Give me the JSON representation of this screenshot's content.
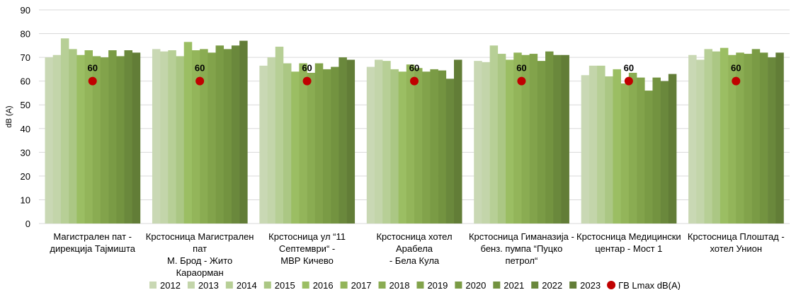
{
  "chart_data": {
    "type": "bar",
    "title": "",
    "xlabel": "",
    "ylabel": "dB (A)",
    "ylim": [
      0,
      90
    ],
    "yticks": [
      0,
      10,
      20,
      30,
      40,
      50,
      60,
      70,
      80,
      90
    ],
    "grid": true,
    "legend_position": "bottom",
    "categories": [
      [
        "Магистрален пат -",
        "дирекција Тајмишта"
      ],
      [
        "Крстосница Магистрален",
        "пат",
        "М. Брод - Жито",
        "Караорман"
      ],
      [
        "Крстосница ул “11",
        "Септември“ -",
        "МВР Кичево"
      ],
      [
        "Крстосница хотел",
        "Арабела",
        "- Бела Кула"
      ],
      [
        "Крстосница Гиманазија -",
        "бенз. пумпа “Пуцко",
        "петрол“"
      ],
      [
        "Крстосница Медицински",
        "центар - Мост 1"
      ],
      [
        "Крстосница Плоштад -",
        "хотел Унион"
      ]
    ],
    "series": [
      {
        "name": "2012",
        "color": "#c9d8b4",
        "values": [
          70,
          73.5,
          66.5,
          66,
          68.5,
          62.5,
          71
        ]
      },
      {
        "name": "2013",
        "color": "#c3d5aa",
        "values": [
          71,
          72.5,
          70,
          69,
          68,
          66.5,
          69
        ]
      },
      {
        "name": "2014",
        "color": "#b7cf96",
        "values": [
          78,
          73,
          74.5,
          68.5,
          75,
          66.5,
          73.5
        ]
      },
      {
        "name": "2015",
        "color": "#abc784",
        "values": [
          73.5,
          70.5,
          67.5,
          65,
          71.5,
          62,
          72.5
        ]
      },
      {
        "name": "2016",
        "color": "#9bbe63",
        "values": [
          71,
          76.5,
          64,
          64,
          69,
          65,
          74
        ]
      },
      {
        "name": "2017",
        "color": "#93b55a",
        "values": [
          73,
          73,
          67.5,
          67,
          72,
          59,
          71
        ]
      },
      {
        "name": "2018",
        "color": "#8aac52",
        "values": [
          70.5,
          73.5,
          63.5,
          65.5,
          71,
          63.5,
          72
        ]
      },
      {
        "name": "2019",
        "color": "#82a34b",
        "values": [
          70,
          72,
          67.5,
          64,
          71.5,
          61.5,
          71.5
        ]
      },
      {
        "name": "2020",
        "color": "#7a9b45",
        "values": [
          73,
          75,
          65,
          65,
          68.5,
          56,
          73.5
        ]
      },
      {
        "name": "2021",
        "color": "#739340",
        "values": [
          70.5,
          73.5,
          66,
          64.5,
          72.5,
          61.5,
          72
        ]
      },
      {
        "name": "2022",
        "color": "#6a883c",
        "values": [
          73,
          75,
          70,
          61,
          71,
          60,
          70
        ]
      },
      {
        "name": "2023",
        "color": "#627d37",
        "values": [
          72,
          77,
          69,
          69,
          71,
          63,
          72
        ]
      }
    ],
    "limit_series": {
      "name": "ГВ Lmax dB(A)",
      "color": "#c00000",
      "values": [
        60,
        60,
        60,
        60,
        60,
        60,
        60
      ],
      "labels": [
        "60",
        "60",
        "60",
        "60",
        "60",
        "60",
        "60"
      ]
    }
  }
}
